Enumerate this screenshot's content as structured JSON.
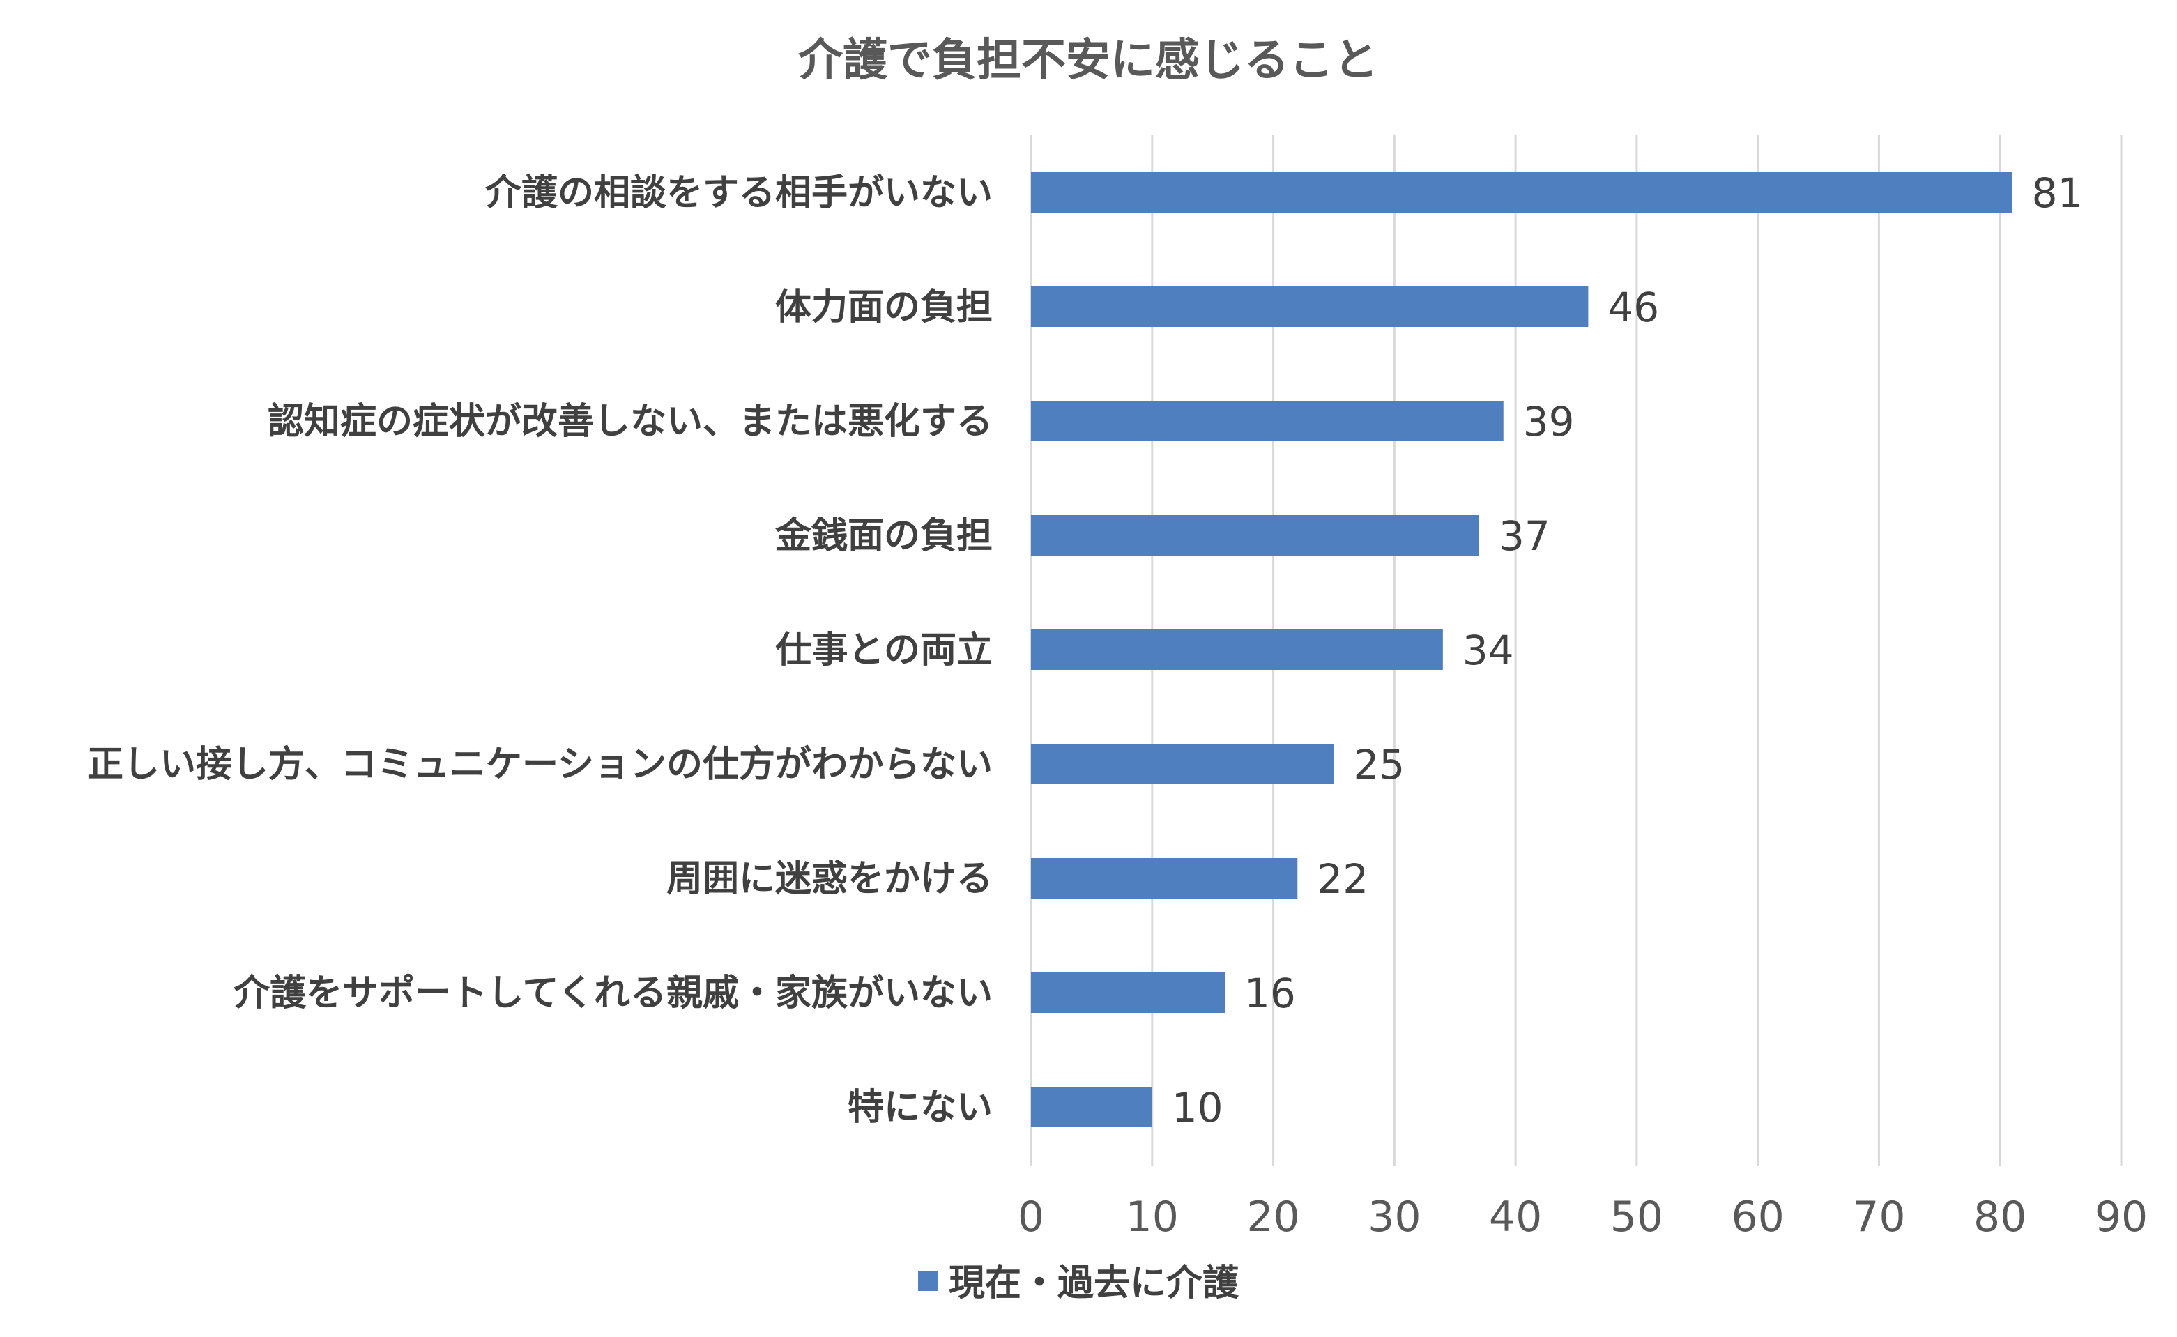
{
  "chart_data": {
    "type": "bar",
    "orientation": "horizontal",
    "title": "介護で負担不安に感じること",
    "categories": [
      "介護の相談をする相手がいない",
      "体力面の負担",
      "認知症の症状が改善しない、または悪化する",
      "金銭面の負担",
      "仕事との両立",
      "正しい接し方、コミュニケーションの仕方がわからない",
      "周囲に迷惑をかける",
      "介護をサポートしてくれる親戚・家族がいない",
      "特にない"
    ],
    "series": [
      {
        "name": "現在・過去に介護",
        "values": [
          81,
          46,
          39,
          37,
          34,
          25,
          22,
          16,
          10
        ],
        "color": "#4f7fbe"
      }
    ],
    "xlim": [
      0,
      90
    ],
    "ticks": [
      0,
      10,
      20,
      30,
      40,
      50,
      60,
      70,
      80,
      90
    ],
    "grid": true,
    "data_labels": true,
    "legend_position": "bottom",
    "gridline_color": "#d9d9d9",
    "text_color": "#404040"
  }
}
